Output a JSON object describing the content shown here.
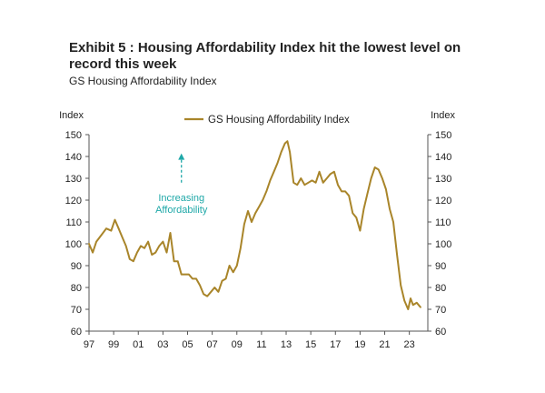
{
  "header": {
    "title": "Exhibit 5 : Housing Affordability Index hit the lowest level on record this week",
    "subtitle": "GS Housing Affordability Index"
  },
  "chart_data": {
    "type": "line",
    "title": "Exhibit 5 : Housing Affordability Index hit the lowest level on record this week",
    "subtitle": "GS Housing Affordability Index",
    "ylabel_left": "Index",
    "ylabel_right": "Index",
    "xlabel": "",
    "ylim": [
      60,
      150
    ],
    "xlim": [
      1997,
      2024.5
    ],
    "yticks": [
      60,
      70,
      80,
      90,
      100,
      110,
      120,
      130,
      140,
      150
    ],
    "xticks": [
      {
        "value": 1997,
        "label": "97"
      },
      {
        "value": 1999,
        "label": "99"
      },
      {
        "value": 2001,
        "label": "01"
      },
      {
        "value": 2003,
        "label": "03"
      },
      {
        "value": 2005,
        "label": "05"
      },
      {
        "value": 2007,
        "label": "07"
      },
      {
        "value": 2009,
        "label": "09"
      },
      {
        "value": 2011,
        "label": "11"
      },
      {
        "value": 2013,
        "label": "13"
      },
      {
        "value": 2015,
        "label": "15"
      },
      {
        "value": 2017,
        "label": "17"
      },
      {
        "value": 2019,
        "label": "19"
      },
      {
        "value": 2021,
        "label": "21"
      },
      {
        "value": 2023,
        "label": "23"
      }
    ],
    "legend": "top-center",
    "grid": false,
    "annotation": {
      "text_lines": [
        "Increasing",
        "Affordability"
      ],
      "x": 2004.5,
      "y_text": 122,
      "arrow_from": 128,
      "arrow_to": 141,
      "color": "#1fa8a8"
    },
    "series": [
      {
        "name": "GS Housing Affordability Index",
        "color": "#a9852a",
        "x": [
          1997.0,
          1997.3,
          1997.6,
          1998.0,
          1998.4,
          1998.8,
          1999.1,
          1999.4,
          1999.7,
          2000.0,
          2000.3,
          2000.6,
          2000.9,
          2001.2,
          2001.5,
          2001.8,
          2002.1,
          2002.4,
          2002.7,
          2003.0,
          2003.3,
          2003.6,
          2003.9,
          2004.2,
          2004.5,
          2004.8,
          2005.1,
          2005.4,
          2005.7,
          2006.0,
          2006.3,
          2006.6,
          2006.9,
          2007.2,
          2007.5,
          2007.8,
          2008.1,
          2008.4,
          2008.7,
          2009.0,
          2009.3,
          2009.6,
          2009.9,
          2010.2,
          2010.5,
          2010.8,
          2011.1,
          2011.4,
          2011.7,
          2012.0,
          2012.3,
          2012.6,
          2012.9,
          2013.1,
          2013.3,
          2013.6,
          2013.9,
          2014.2,
          2014.5,
          2014.8,
          2015.1,
          2015.4,
          2015.7,
          2016.0,
          2016.3,
          2016.6,
          2016.9,
          2017.2,
          2017.5,
          2017.8,
          2018.1,
          2018.4,
          2018.7,
          2019.0,
          2019.3,
          2019.6,
          2019.9,
          2020.2,
          2020.5,
          2020.8,
          2021.1,
          2021.4,
          2021.7,
          2022.0,
          2022.3,
          2022.6,
          2022.9,
          2023.1,
          2023.3,
          2023.6,
          2023.9
        ],
        "values": [
          100,
          96,
          101,
          104,
          107,
          106,
          111,
          107,
          103,
          99,
          93,
          92,
          96,
          99,
          98,
          101,
          95,
          96,
          99,
          101,
          96,
          105,
          92,
          92,
          86,
          86,
          86,
          84,
          84,
          81,
          77,
          76,
          78,
          80,
          78,
          83,
          84,
          90,
          87,
          90,
          98,
          109,
          115,
          110,
          114,
          117,
          120,
          124,
          129,
          133,
          137,
          142,
          146,
          147,
          142,
          128,
          127,
          130,
          127,
          128,
          129,
          128,
          133,
          128,
          130,
          132,
          133,
          127,
          124,
          124,
          122,
          114,
          112,
          106,
          116,
          123,
          130,
          135,
          134,
          130,
          125,
          116,
          110,
          95,
          81,
          74,
          70,
          75,
          72,
          73,
          71
        ]
      }
    ]
  }
}
